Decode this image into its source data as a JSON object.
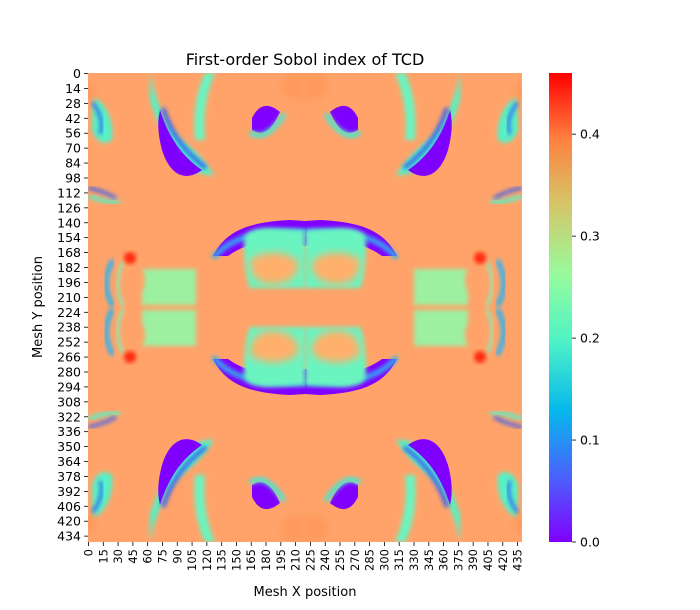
{
  "chart_data": {
    "type": "heatmap",
    "title": "First-order Sobol index of TCD",
    "xlabel": "Mesh X position",
    "ylabel": "Mesh Y position",
    "colormap": "rainbow",
    "grid": false,
    "x_range": [
      0,
      440
    ],
    "y_range": [
      0,
      440
    ],
    "x_tick_labels": [
      "0",
      "15",
      "30",
      "45",
      "60",
      "75",
      "90",
      "105",
      "120",
      "135",
      "150",
      "165",
      "180",
      "195",
      "210",
      "225",
      "240",
      "255",
      "270",
      "285",
      "300",
      "315",
      "330",
      "345",
      "360",
      "375",
      "390",
      "405",
      "420",
      "435"
    ],
    "y_tick_labels": [
      "0",
      "14",
      "28",
      "42",
      "56",
      "70",
      "84",
      "98",
      "112",
      "126",
      "140",
      "154",
      "168",
      "182",
      "196",
      "210",
      "224",
      "238",
      "252",
      "266",
      "280",
      "294",
      "308",
      "322",
      "336",
      "350",
      "364",
      "378",
      "392",
      "406",
      "420",
      "434"
    ],
    "colorbar": {
      "min": 0.0,
      "max": 0.46,
      "position": "right",
      "tick_values": [
        0.0,
        0.1,
        0.2,
        0.3,
        0.4
      ],
      "tick_labels": [
        "0.0",
        "0.1",
        "0.2",
        "0.3",
        "0.4"
      ]
    },
    "field_summary": {
      "background_value": 0.36,
      "low_value_regions_value": 0.0,
      "high_value_spots_value": 0.46,
      "symmetry": "mirror-symmetric about the horizontal and vertical center lines"
    }
  }
}
